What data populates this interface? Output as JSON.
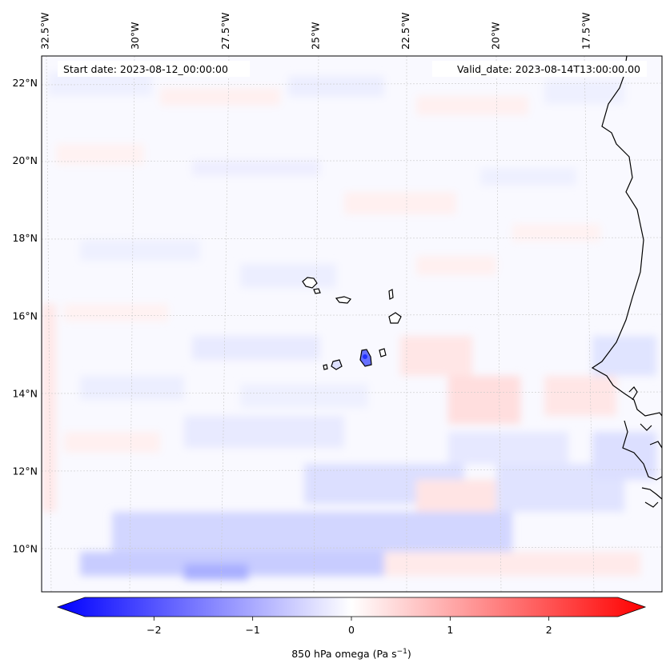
{
  "map": {
    "start_date": "Start date: 2023-08-12_00:00:00",
    "valid_date": "Valid_date: 2023-08-14T13:00:00.00",
    "lon_labels": [
      {
        "lon": -32.5,
        "text": "32.5°W"
      },
      {
        "lon": -30.0,
        "text": "30°W"
      },
      {
        "lon": -27.5,
        "text": "27.5°W"
      },
      {
        "lon": -25.0,
        "text": "25°W"
      },
      {
        "lon": -22.5,
        "text": "22.5°W"
      },
      {
        "lon": -20.0,
        "text": "20°W"
      },
      {
        "lon": -17.5,
        "text": "17.5°W"
      }
    ],
    "lat_labels": [
      {
        "lat": 22,
        "text": "22°N"
      },
      {
        "lat": 20,
        "text": "20°N"
      },
      {
        "lat": 18,
        "text": "18°N"
      },
      {
        "lat": 16,
        "text": "16°N"
      },
      {
        "lat": 14,
        "text": "14°N"
      },
      {
        "lat": 12,
        "text": "12°N"
      },
      {
        "lat": 10,
        "text": "10°N"
      }
    ],
    "extent": {
      "lon_min": -32.6,
      "lon_max": -15.4,
      "lat_min": 8.9,
      "lat_max": 22.7
    }
  },
  "colorbar": {
    "label_main": "850 hPa omega (Pa s",
    "label_exp": "−1",
    "label_close": ")",
    "range": [
      -2.7,
      2.7
    ],
    "ticks": [
      {
        "value": -2,
        "text": "−2"
      },
      {
        "value": -1,
        "text": "−1"
      },
      {
        "value": 0,
        "text": "0"
      },
      {
        "value": 1,
        "text": "1"
      },
      {
        "value": 2,
        "text": "2"
      }
    ],
    "colors": {
      "negative": "#0000ff",
      "neutral": "#ffffff",
      "positive": "#ff0000"
    }
  }
}
